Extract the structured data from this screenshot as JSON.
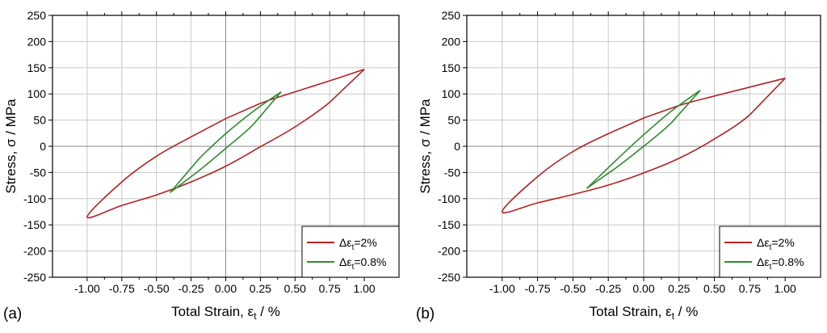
{
  "chart_data": [
    {
      "type": "line",
      "panel_label": "(a)",
      "xlabel": {
        "main": "Total Strain, ε",
        "sub": "t",
        "suffix": " / %"
      },
      "ylabel": "Stress, σ / MPa",
      "xlim": [
        -1.25,
        1.25
      ],
      "ylim": [
        -250,
        250
      ],
      "xticks": [
        -1.0,
        -0.75,
        -0.5,
        -0.25,
        0.0,
        0.25,
        0.5,
        0.75,
        1.0
      ],
      "xtick_labels": [
        "-1.00",
        "-0.75",
        "-0.50",
        "-0.25",
        "0.00",
        "0.25",
        "0.50",
        "0.75",
        "1.00"
      ],
      "yticks": [
        -250,
        -200,
        -150,
        -100,
        -50,
        0,
        50,
        100,
        150,
        200,
        250
      ],
      "ytick_labels": [
        "-250",
        "-200",
        "-150",
        "-100",
        "-50",
        "0",
        "50",
        "100",
        "150",
        "200",
        "250"
      ],
      "grid": true,
      "legend_position": "bottom-right",
      "series": [
        {
          "name": "Δε_t=2%",
          "legend": {
            "prefix": "Δε",
            "sub": "t",
            "suffix": "=2%"
          },
          "color": "#b22222",
          "x": [
            1.0,
            0.75,
            0.5,
            0.25,
            0.0,
            -0.25,
            -0.5,
            -0.75,
            -1.0,
            -0.75,
            -0.5,
            -0.25,
            0.0,
            0.25,
            0.5,
            0.75,
            1.0
          ],
          "y": [
            147,
            125,
            104,
            82,
            53,
            18,
            -19,
            -68,
            -135,
            -113,
            -93,
            -68,
            -38,
            -1,
            37,
            84,
            147
          ]
        },
        {
          "name": "Δε_t=0.8%",
          "legend": {
            "prefix": "Δε",
            "sub": "t",
            "suffix": "=0.8%"
          },
          "color": "#2e8b2e",
          "x": [
            0.4,
            0.2,
            0.0,
            -0.2,
            -0.4,
            -0.2,
            0.0,
            0.2,
            0.4
          ],
          "y": [
            104,
            67,
            24,
            -26,
            -88,
            -48,
            -4,
            42,
            104
          ]
        }
      ]
    },
    {
      "type": "line",
      "panel_label": "(b)",
      "xlabel": {
        "main": "Total Strain, ε",
        "sub": "t",
        "suffix": " / %"
      },
      "ylabel": "Stress, σ / MPa",
      "xlim": [
        -1.25,
        1.25
      ],
      "ylim": [
        -250,
        250
      ],
      "xticks": [
        -1.0,
        -0.75,
        -0.5,
        -0.25,
        0.0,
        0.25,
        0.5,
        0.75,
        1.0
      ],
      "xtick_labels": [
        "-1.00",
        "-0.75",
        "-0.50",
        "-0.25",
        "0.00",
        "0.25",
        "0.50",
        "0.75",
        "1.00"
      ],
      "yticks": [
        -250,
        -200,
        -150,
        -100,
        -50,
        0,
        50,
        100,
        150,
        200,
        250
      ],
      "ytick_labels": [
        "-250",
        "-200",
        "-150",
        "-100",
        "-50",
        "0",
        "50",
        "100",
        "150",
        "200",
        "250"
      ],
      "grid": true,
      "legend_position": "bottom-right",
      "series": [
        {
          "name": "Δε_t=2%",
          "legend": {
            "prefix": "Δε",
            "sub": "t",
            "suffix": "=2%"
          },
          "color": "#b22222",
          "x": [
            1.0,
            0.75,
            0.5,
            0.25,
            0.0,
            -0.25,
            -0.5,
            -0.75,
            -1.0,
            -0.75,
            -0.5,
            -0.25,
            0.0,
            0.25,
            0.5,
            0.75,
            1.0
          ],
          "y": [
            130,
            113,
            96,
            78,
            54,
            24,
            -10,
            -58,
            -125,
            -108,
            -92,
            -74,
            -51,
            -23,
            14,
            60,
            130
          ]
        },
        {
          "name": "Δε_t=0.8%",
          "legend": {
            "prefix": "Δε",
            "sub": "t",
            "suffix": "=0.8%"
          },
          "color": "#2e8b2e",
          "x": [
            0.4,
            0.2,
            0.0,
            -0.2,
            -0.4,
            -0.2,
            0.0,
            0.2,
            0.4
          ],
          "y": [
            107,
            68,
            22,
            -28,
            -80,
            -42,
            0,
            46,
            107
          ]
        }
      ]
    }
  ]
}
